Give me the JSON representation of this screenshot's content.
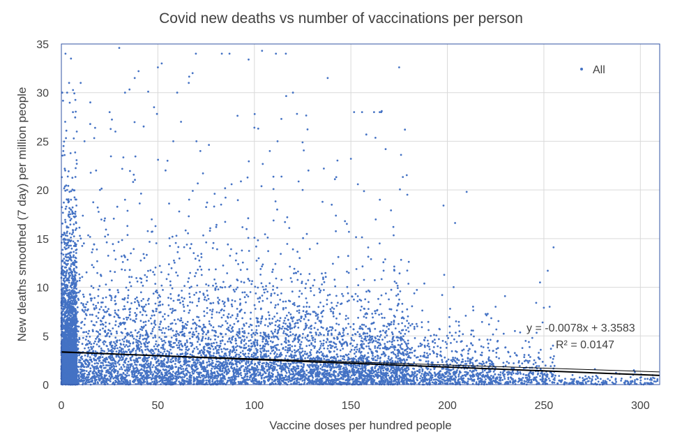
{
  "chart_data": {
    "type": "scatter",
    "title": "Covid new deaths vs number of vaccinations per person",
    "xlabel": "Vaccine doses per hundred people",
    "ylabel": "New deaths smoothed (7 day) per million people",
    "xlim": [
      0,
      310
    ],
    "ylim": [
      0,
      35
    ],
    "x_ticks": [
      "0",
      "50",
      "100",
      "150",
      "200",
      "250",
      "300"
    ],
    "y_ticks": [
      "0",
      "5",
      "10",
      "15",
      "20",
      "25",
      "30",
      "35"
    ],
    "grid": true,
    "legend_position": "top-right",
    "series": [
      {
        "name": "All",
        "color": "#4472c4",
        "marker": "dot",
        "note": "Thousands of points; densest near x=0-130, y=0-10; sparse points extend to y=35 and x=310"
      }
    ],
    "trendline": {
      "equation": "y = -0.0078x + 3.3583",
      "r_squared": "R² = 0.0147",
      "slope": -0.0078,
      "intercept": 3.3583,
      "color": "#000000"
    },
    "sample_points": [
      [
        1,
        24
      ],
      [
        2,
        27
      ],
      [
        3,
        30
      ],
      [
        4,
        31
      ],
      [
        5,
        33.5
      ],
      [
        6,
        28
      ],
      [
        2,
        22
      ],
      [
        3,
        20
      ],
      [
        5,
        19
      ],
      [
        8,
        26
      ],
      [
        10,
        31
      ],
      [
        12,
        25
      ],
      [
        15,
        29
      ],
      [
        18,
        22
      ],
      [
        20,
        20
      ],
      [
        25,
        28
      ],
      [
        28,
        26
      ],
      [
        30,
        34.6
      ],
      [
        33,
        30
      ],
      [
        38,
        31.5
      ],
      [
        40,
        32.2
      ],
      [
        45,
        30.1
      ],
      [
        48,
        28.5
      ],
      [
        50,
        32.6
      ],
      [
        52,
        33
      ],
      [
        55,
        23
      ],
      [
        58,
        25
      ],
      [
        60,
        30
      ],
      [
        62,
        27
      ],
      [
        66,
        31
      ],
      [
        68,
        32
      ],
      [
        70,
        25
      ],
      [
        72,
        24
      ],
      [
        97,
        33.4
      ],
      [
        100,
        26.4
      ],
      [
        102,
        26.3
      ],
      [
        104,
        34.3
      ],
      [
        108,
        24
      ],
      [
        112,
        25
      ],
      [
        114,
        27.3
      ],
      [
        120,
        30
      ],
      [
        125,
        20
      ],
      [
        128,
        22
      ],
      [
        136,
        22.2
      ],
      [
        138,
        31.5
      ],
      [
        150,
        23.2
      ],
      [
        158,
        25.7
      ],
      [
        162,
        28
      ],
      [
        165,
        19
      ],
      [
        166,
        28.1
      ],
      [
        168,
        24.2
      ],
      [
        175,
        32.6
      ],
      [
        176,
        23.6
      ],
      [
        178,
        26.2
      ],
      [
        172,
        16.2
      ],
      [
        198,
        18.4
      ],
      [
        204,
        16.6
      ],
      [
        210,
        19.8
      ],
      [
        225,
        8
      ],
      [
        246,
        8.4
      ],
      [
        248,
        10.5
      ],
      [
        252,
        11.7
      ],
      [
        255,
        14.1
      ],
      [
        250,
        7.9
      ],
      [
        253,
        8
      ],
      [
        300,
        0.7
      ],
      [
        305,
        0.5
      ],
      [
        308,
        0.3
      ],
      [
        270,
        0.1
      ],
      [
        280,
        0.2
      ],
      [
        290,
        0.4
      ],
      [
        240,
        2.4
      ],
      [
        245,
        2.5
      ],
      [
        230,
        3.8
      ],
      [
        235,
        5.5
      ],
      [
        244,
        4.8
      ]
    ]
  }
}
